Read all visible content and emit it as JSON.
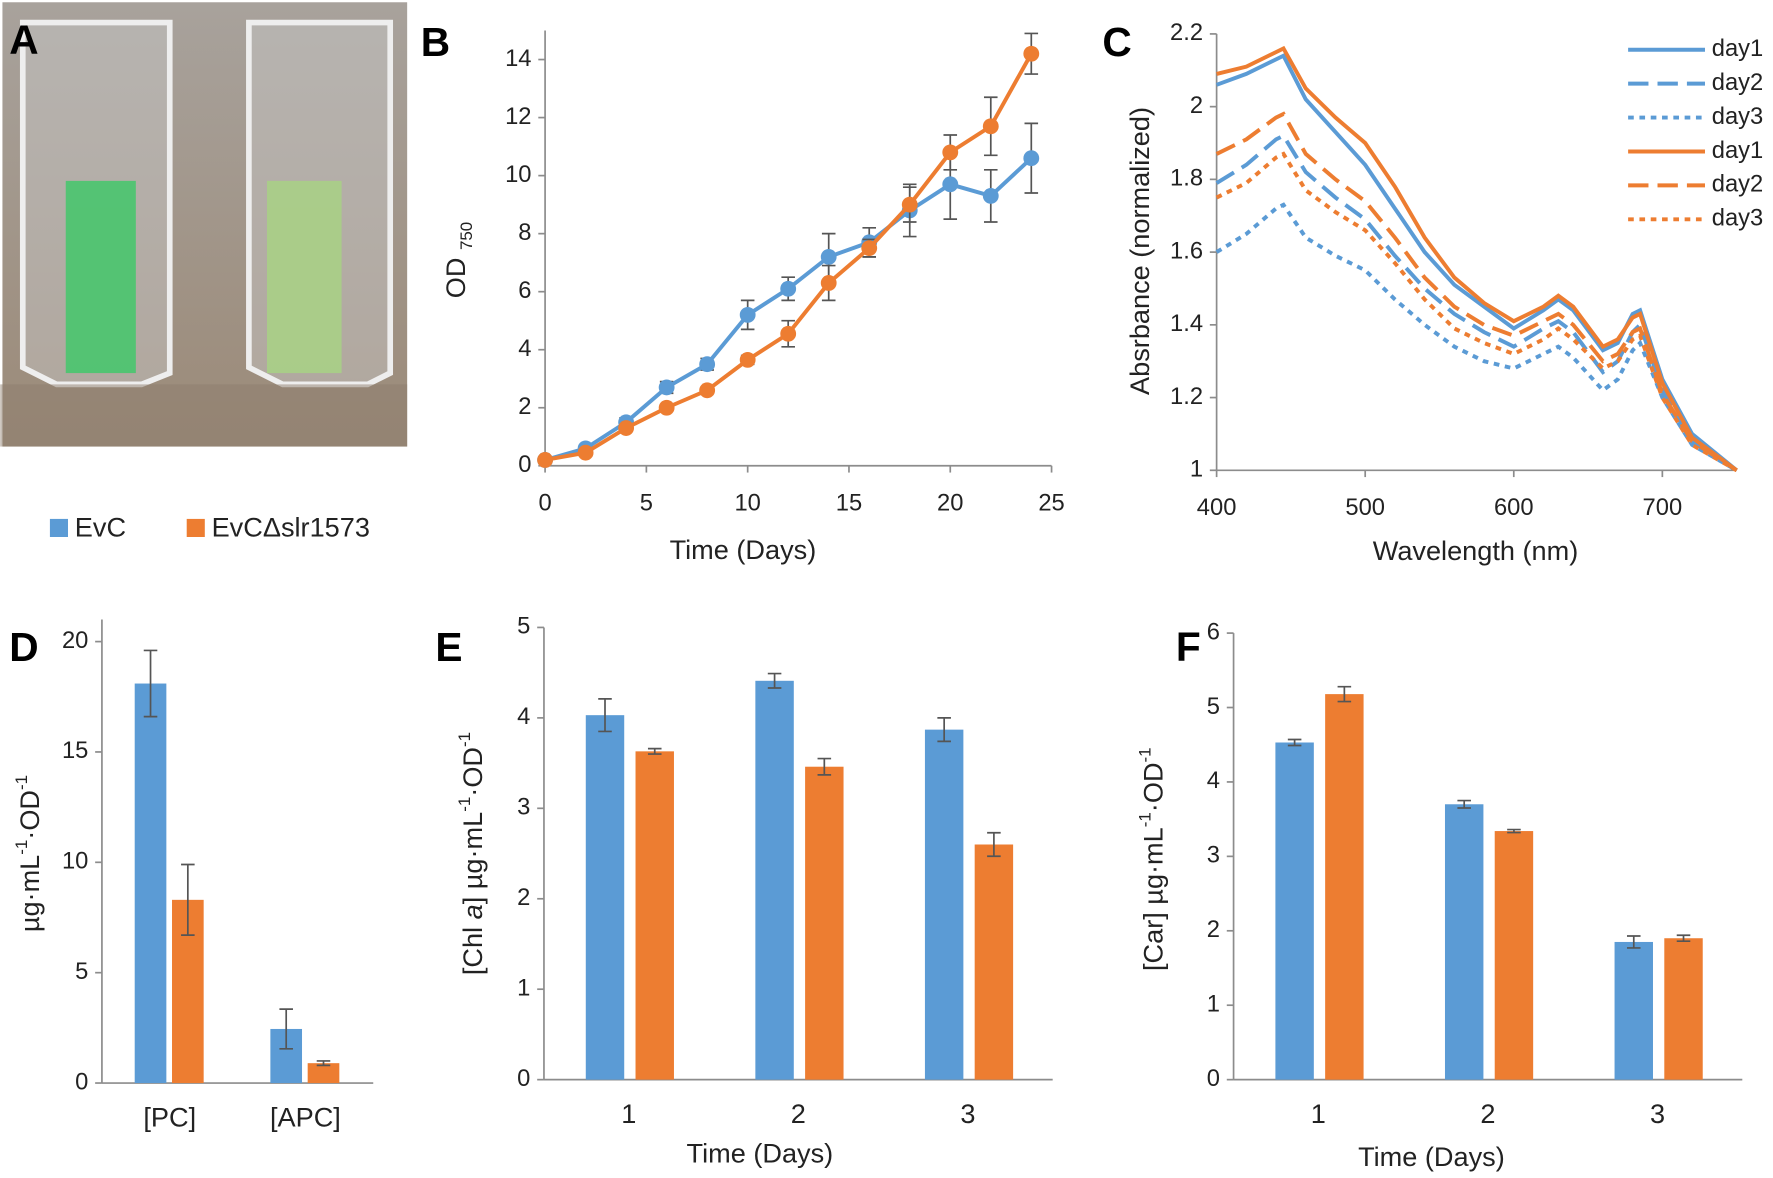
{
  "panel_A": {
    "label": "A"
  },
  "legend": [
    {
      "name": "EvC",
      "color": "#5b9bd5"
    },
    {
      "name": "EvCΔslr1573",
      "color": "#ed7d31"
    }
  ],
  "chart_data": [
    {
      "type": "line",
      "panel_label": "B",
      "markers": true,
      "x_label": "Time (Days)",
      "y_label": [
        {
          "text": "OD "
        },
        {
          "text": "750",
          "sub": true
        }
      ],
      "x": [
        0,
        2,
        4,
        6,
        8,
        10,
        12,
        14,
        16,
        18,
        20,
        22,
        24
      ],
      "series": [
        {
          "color": "#5b9bd5",
          "values": [
            0.2,
            0.6,
            1.5,
            2.7,
            3.5,
            5.2,
            6.1,
            7.2,
            7.7,
            8.8,
            9.7,
            9.3,
            10.6
          ],
          "errors": [
            0.1,
            0.1,
            0.15,
            0.2,
            0.2,
            0.5,
            0.4,
            0.8,
            0.5,
            0.9,
            1.2,
            0.9,
            1.2
          ]
        },
        {
          "color": "#ed7d31",
          "values": [
            0.2,
            0.45,
            1.3,
            2.0,
            2.6,
            3.65,
            4.55,
            6.3,
            7.5,
            9.0,
            10.8,
            11.7,
            14.2
          ],
          "errors": [
            0.05,
            0.05,
            0.1,
            0.1,
            0.1,
            0.15,
            0.45,
            0.6,
            0.3,
            0.6,
            0.6,
            1.0,
            0.7
          ]
        }
      ],
      "xlim": [
        0,
        25
      ],
      "xticks": [
        0,
        5,
        10,
        15,
        20,
        25
      ],
      "ylim": [
        0,
        15
      ],
      "yticks": [
        0,
        2,
        4,
        6,
        8,
        10,
        12,
        14
      ]
    },
    {
      "type": "line",
      "panel_label": "C",
      "legend_position": "top-right",
      "x_label": "Wavelength (nm)",
      "y_label": [
        {
          "text": "Absrbance (normalized)"
        }
      ],
      "x": [
        400,
        420,
        440,
        445,
        460,
        480,
        500,
        520,
        540,
        560,
        580,
        600,
        620,
        630,
        640,
        660,
        670,
        680,
        685,
        700,
        720,
        750
      ],
      "series": [
        {
          "name": "day1",
          "color": "#5b9bd5",
          "dash": "solid",
          "values": [
            2.06,
            2.09,
            2.13,
            2.14,
            2.02,
            1.93,
            1.84,
            1.72,
            1.6,
            1.51,
            1.45,
            1.39,
            1.44,
            1.47,
            1.44,
            1.33,
            1.35,
            1.43,
            1.44,
            1.25,
            1.1,
            1.0
          ]
        },
        {
          "name": "day2",
          "color": "#5b9bd5",
          "dash": "dash",
          "values": [
            1.79,
            1.84,
            1.91,
            1.92,
            1.82,
            1.75,
            1.69,
            1.59,
            1.5,
            1.43,
            1.38,
            1.34,
            1.39,
            1.41,
            1.38,
            1.27,
            1.3,
            1.38,
            1.4,
            1.22,
            1.08,
            1.0
          ]
        },
        {
          "name": "day3",
          "color": "#5b9bd5",
          "dash": "dot",
          "values": [
            1.6,
            1.65,
            1.72,
            1.73,
            1.64,
            1.59,
            1.55,
            1.47,
            1.4,
            1.34,
            1.3,
            1.28,
            1.32,
            1.34,
            1.31,
            1.22,
            1.25,
            1.33,
            1.35,
            1.2,
            1.07,
            1.0
          ]
        },
        {
          "name": "day1",
          "color": "#ed7d31",
          "dash": "solid",
          "values": [
            2.09,
            2.11,
            2.15,
            2.16,
            2.05,
            1.97,
            1.9,
            1.78,
            1.64,
            1.53,
            1.46,
            1.41,
            1.45,
            1.48,
            1.45,
            1.34,
            1.36,
            1.42,
            1.43,
            1.24,
            1.09,
            1.0
          ]
        },
        {
          "name": "day2",
          "color": "#ed7d31",
          "dash": "dash",
          "values": [
            1.87,
            1.91,
            1.97,
            1.98,
            1.87,
            1.8,
            1.74,
            1.64,
            1.53,
            1.45,
            1.4,
            1.37,
            1.41,
            1.43,
            1.4,
            1.3,
            1.32,
            1.38,
            1.39,
            1.21,
            1.08,
            1.0
          ]
        },
        {
          "name": "day3",
          "color": "#ed7d31",
          "dash": "dot",
          "values": [
            1.75,
            1.79,
            1.86,
            1.87,
            1.77,
            1.71,
            1.66,
            1.57,
            1.47,
            1.39,
            1.35,
            1.32,
            1.36,
            1.39,
            1.36,
            1.28,
            1.3,
            1.36,
            1.37,
            1.2,
            1.07,
            1.0
          ]
        }
      ],
      "xlim": [
        400,
        750
      ],
      "xticks": [
        400,
        500,
        600,
        700
      ],
      "ylim": [
        1,
        2.2
      ],
      "yticks": [
        1,
        1.2,
        1.4,
        1.6,
        1.8,
        2,
        2.2
      ]
    },
    {
      "type": "bar",
      "panel_label": "D",
      "y_label": [
        {
          "text": "µg·mL"
        },
        {
          "text": "-1",
          "sup": true
        },
        {
          "text": "·OD"
        },
        {
          "text": "-1",
          "sup": true
        }
      ],
      "categories": [
        "[PC]",
        "[APC]"
      ],
      "series": [
        {
          "color": "#5b9bd5",
          "values": [
            18.1,
            2.45
          ],
          "errors": [
            1.5,
            0.9
          ]
        },
        {
          "color": "#ed7d31",
          "values": [
            8.3,
            0.9
          ],
          "errors": [
            1.6,
            0.1
          ]
        }
      ],
      "ylim": [
        0,
        21
      ],
      "yticks": [
        0,
        5,
        10,
        15,
        20
      ]
    },
    {
      "type": "bar",
      "panel_label": "E",
      "x_label": "Time (Days)",
      "y_label": [
        {
          "text": "[Chl "
        },
        {
          "text": "a",
          "italic": true
        },
        {
          "text": "] µg·mL"
        },
        {
          "text": "-1",
          "sup": true
        },
        {
          "text": "·OD"
        },
        {
          "text": "-1",
          "sup": true
        }
      ],
      "categories": [
        "1",
        "2",
        "3"
      ],
      "series": [
        {
          "color": "#5b9bd5",
          "values": [
            4.03,
            4.41,
            3.87
          ],
          "errors": [
            0.18,
            0.08,
            0.13
          ]
        },
        {
          "color": "#ed7d31",
          "values": [
            3.63,
            3.46,
            2.6
          ],
          "errors": [
            0.03,
            0.09,
            0.13
          ]
        }
      ],
      "ylim": [
        0,
        5
      ],
      "yticks": [
        0,
        1,
        2,
        3,
        4,
        5
      ]
    },
    {
      "type": "bar",
      "panel_label": "F",
      "x_label": "Time (Days)",
      "y_label": [
        {
          "text": "[Car] µg·mL"
        },
        {
          "text": "-1",
          "sup": true
        },
        {
          "text": "·OD"
        },
        {
          "text": "-1",
          "sup": true
        }
      ],
      "categories": [
        "1",
        "2",
        "3"
      ],
      "series": [
        {
          "color": "#5b9bd5",
          "values": [
            4.53,
            3.7,
            1.85
          ],
          "errors": [
            0.04,
            0.05,
            0.08
          ]
        },
        {
          "color": "#ed7d31",
          "values": [
            5.18,
            3.34,
            1.9
          ],
          "errors": [
            0.1,
            0.02,
            0.04
          ]
        }
      ],
      "ylim": [
        0,
        6
      ],
      "yticks": [
        0,
        1,
        2,
        3,
        4,
        5,
        6
      ]
    }
  ]
}
